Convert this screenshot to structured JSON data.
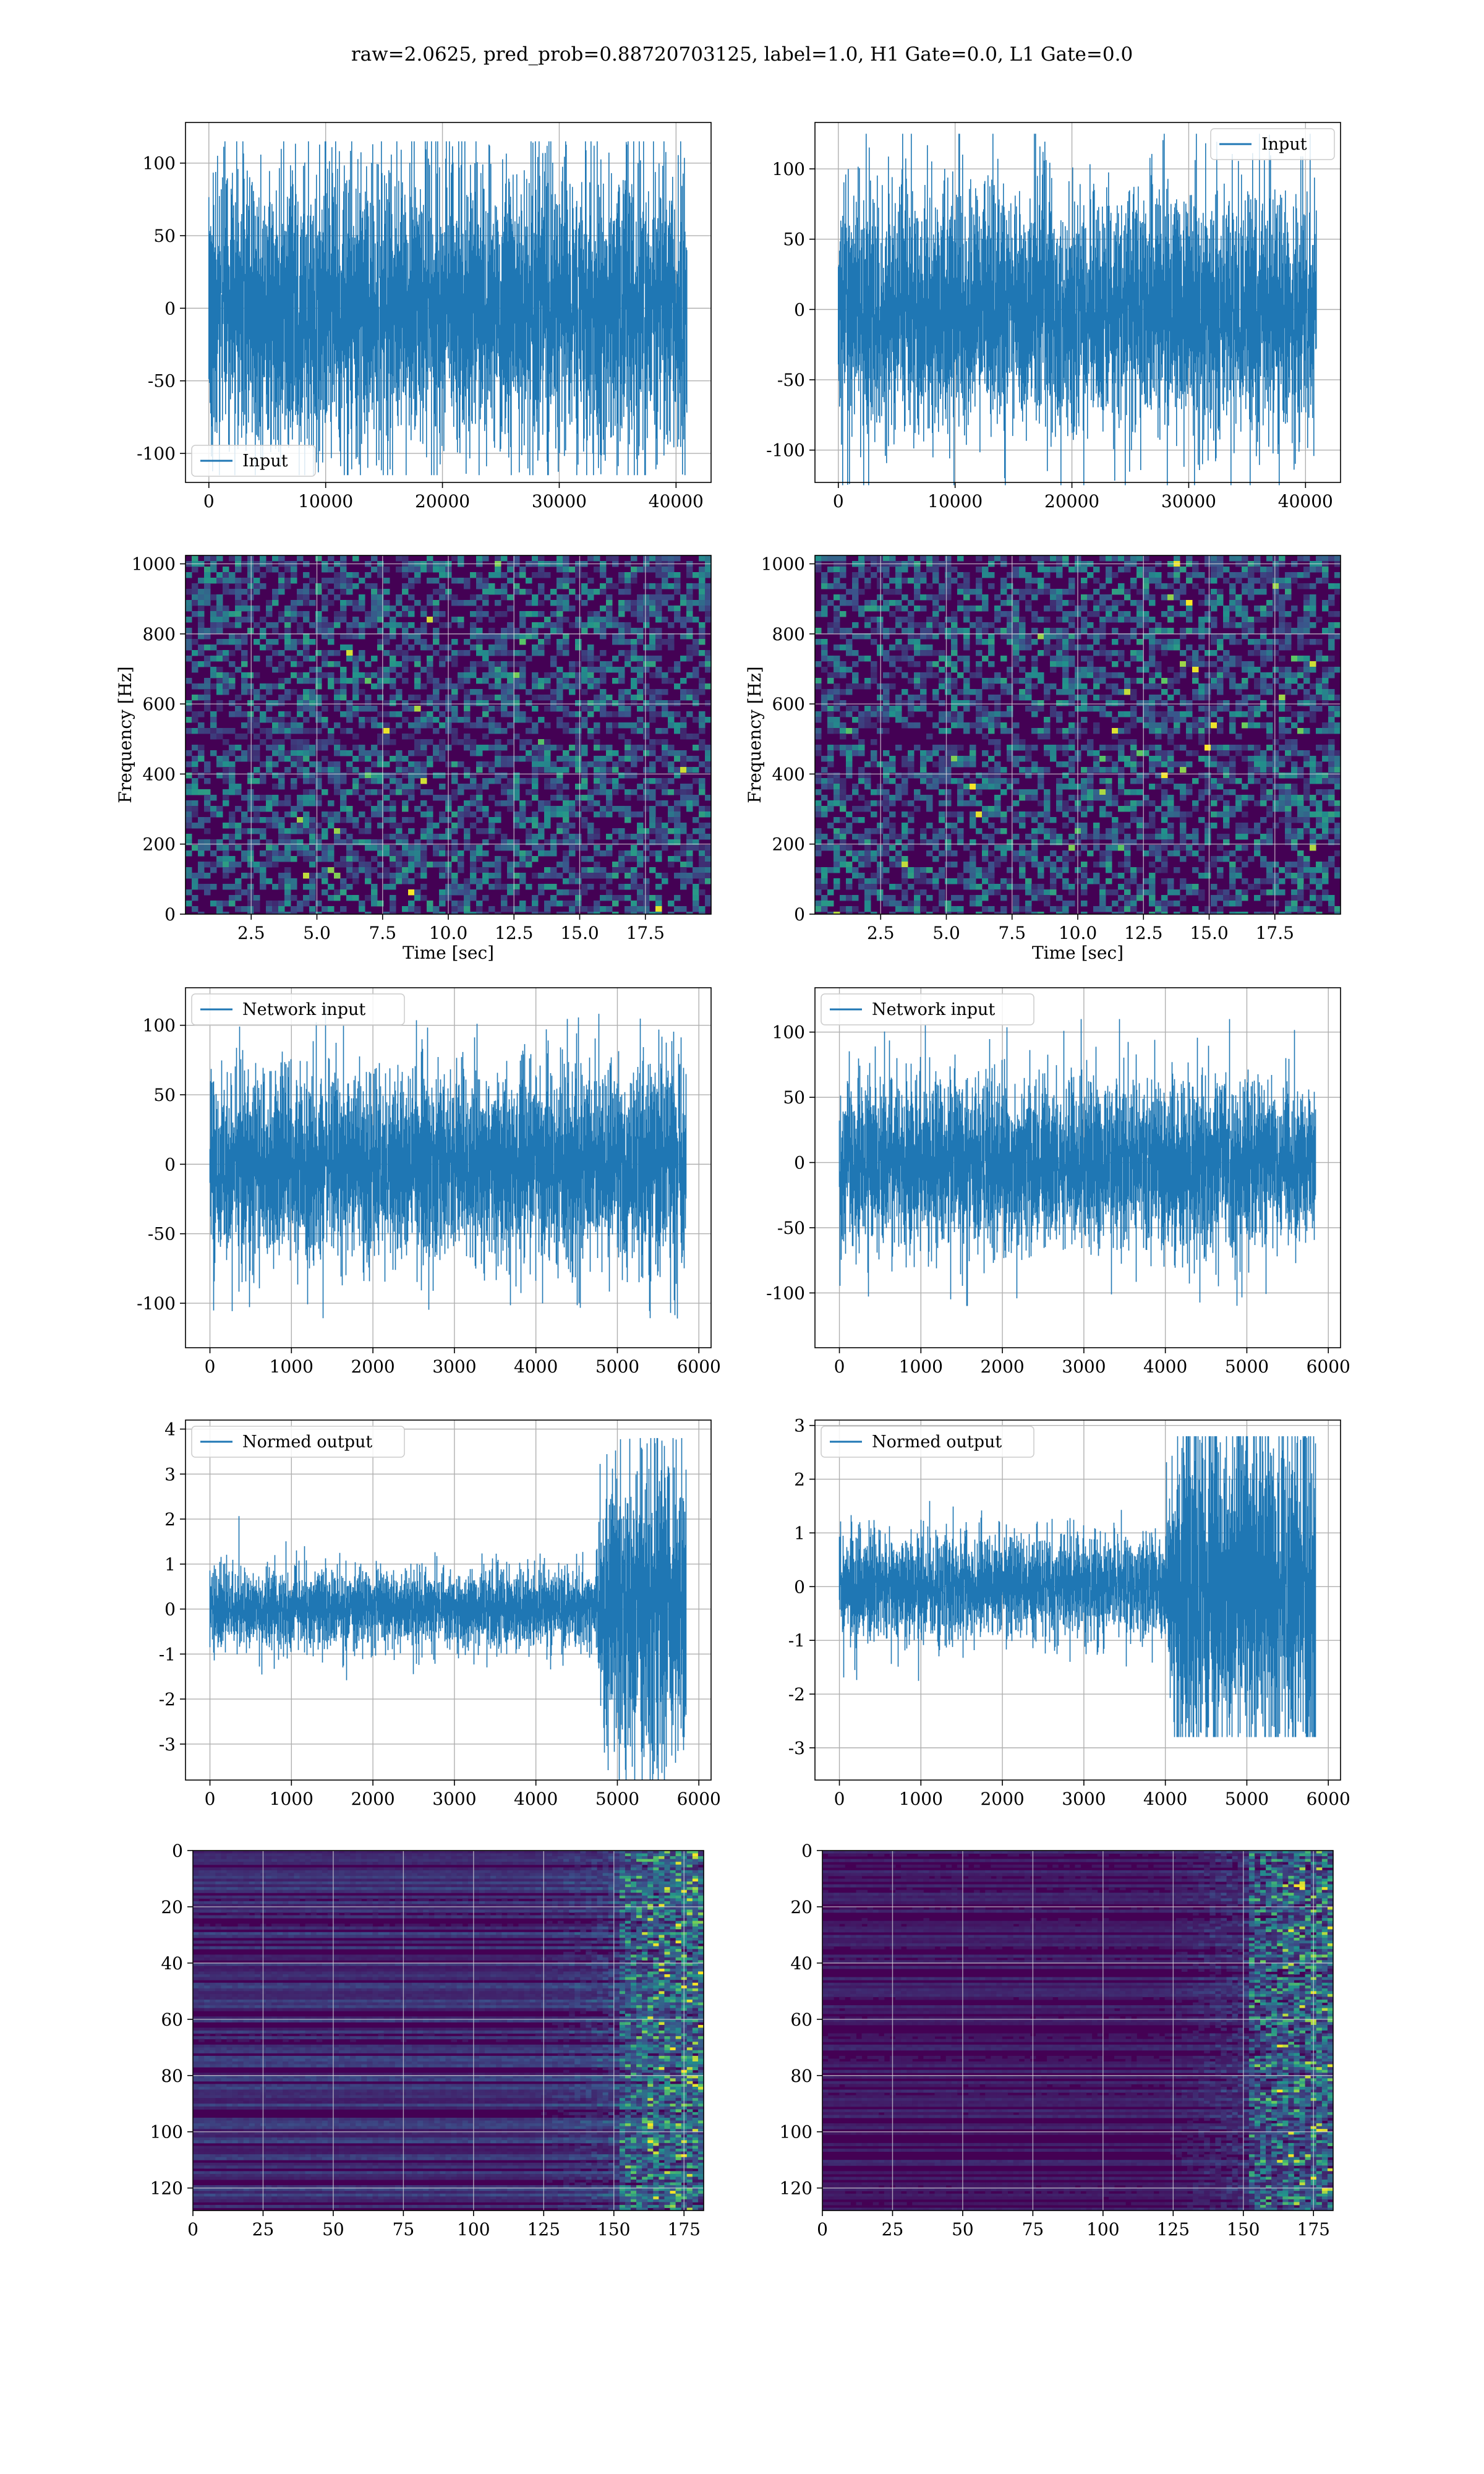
{
  "figure": {
    "title": "raw=2.0625, pred_prob=0.88720703125, label=1.0, H1 Gate=0.0, L1 Gate=0.0"
  },
  "colors": {
    "series": "#1f77b4",
    "grid": "#b0b0b0",
    "viridis_low": "#440154",
    "viridis_mid": "#21918c",
    "viridis_high": "#fde725"
  },
  "chart_data": [
    {
      "type": "line",
      "id": "row1-left",
      "series": [
        {
          "name": "Input",
          "amplitude": 45,
          "peak": 115,
          "n_points": 40960
        }
      ],
      "xlim": [
        -2000,
        43000
      ],
      "ylim": [
        -120,
        128
      ],
      "xticks": [
        0,
        10000,
        20000,
        30000,
        40000
      ],
      "yticks": [
        100,
        50,
        0,
        -50,
        -100
      ],
      "legend": "lower-left",
      "grid": true,
      "xlabel": "",
      "ylabel": ""
    },
    {
      "type": "line",
      "id": "row1-right",
      "series": [
        {
          "name": "Input",
          "amplitude": 40,
          "peak": 125,
          "n_points": 40960
        }
      ],
      "xlim": [
        -2000,
        43000
      ],
      "ylim": [
        -123,
        133
      ],
      "xticks": [
        0,
        10000,
        20000,
        30000,
        40000
      ],
      "yticks": [
        100,
        50,
        0,
        -50,
        -100
      ],
      "legend": "upper-right",
      "grid": true,
      "xlabel": "",
      "ylabel": ""
    },
    {
      "type": "heatmap",
      "id": "row2-left",
      "xlim": [
        0,
        20
      ],
      "ylim": [
        0,
        1024
      ],
      "xticks": [
        "2.5",
        "5.0",
        "7.5",
        "10.0",
        "12.5",
        "15.0",
        "17.5"
      ],
      "yticks": [
        0,
        200,
        400,
        600,
        800,
        1000
      ],
      "xlabel": "Time [sec]",
      "ylabel": "Frequency [Hz]",
      "grid": true,
      "colormap": "viridis"
    },
    {
      "type": "heatmap",
      "id": "row2-right",
      "xlim": [
        0,
        20
      ],
      "ylim": [
        0,
        1024
      ],
      "xticks": [
        "2.5",
        "5.0",
        "7.5",
        "10.0",
        "12.5",
        "15.0",
        "17.5"
      ],
      "yticks": [
        0,
        200,
        400,
        600,
        800,
        1000
      ],
      "xlabel": "Time [sec]",
      "ylabel": "Frequency [Hz]",
      "grid": true,
      "colormap": "viridis"
    },
    {
      "type": "line",
      "id": "row3-left",
      "series": [
        {
          "name": "Network input",
          "amplitude": 32,
          "peak": 115,
          "n_points": 5850
        }
      ],
      "xlim": [
        -300,
        6150
      ],
      "ylim": [
        -132,
        127
      ],
      "xticks": [
        0,
        1000,
        2000,
        3000,
        4000,
        5000,
        6000
      ],
      "yticks": [
        100,
        50,
        0,
        -50,
        -100
      ],
      "legend": "upper-left",
      "grid": true,
      "xlabel": "",
      "ylabel": ""
    },
    {
      "type": "line",
      "id": "row3-right",
      "series": [
        {
          "name": "Network input",
          "amplitude": 30,
          "peak": 110,
          "n_points": 5850
        }
      ],
      "xlim": [
        -300,
        6150
      ],
      "ylim": [
        -142,
        134
      ],
      "xticks": [
        0,
        1000,
        2000,
        3000,
        4000,
        5000,
        6000
      ],
      "yticks": [
        100,
        50,
        0,
        -50,
        -100
      ],
      "legend": "upper-left",
      "grid": true,
      "xlabel": "",
      "ylabel": ""
    },
    {
      "type": "line",
      "id": "row4-left",
      "series": [
        {
          "name": "Normed output",
          "amplitude": 0.4,
          "burst_start": 4720,
          "burst_amplitude": 1.2,
          "peak": 3.8,
          "n_points": 5850
        }
      ],
      "xlim": [
        -300,
        6150
      ],
      "ylim": [
        -3.8,
        4.2
      ],
      "xticks": [
        0,
        1000,
        2000,
        3000,
        4000,
        5000,
        6000
      ],
      "yticks": [
        4,
        3,
        2,
        1,
        0,
        -1,
        -2,
        -3
      ],
      "legend": "upper-left",
      "grid": true,
      "xlabel": "",
      "ylabel": ""
    },
    {
      "type": "line",
      "id": "row4-right",
      "series": [
        {
          "name": "Normed output",
          "amplitude": 0.45,
          "burst_start": 4000,
          "burst_amplitude": 1.1,
          "peak": 2.8,
          "n_points": 5850
        }
      ],
      "xlim": [
        -300,
        6150
      ],
      "ylim": [
        -3.6,
        3.1
      ],
      "xticks": [
        0,
        1000,
        2000,
        3000,
        4000,
        5000,
        6000
      ],
      "yticks": [
        3,
        2,
        1,
        0,
        -1,
        -2,
        -3
      ],
      "legend": "upper-left",
      "grid": true,
      "xlabel": "",
      "ylabel": ""
    },
    {
      "type": "heatmap",
      "id": "row5-left",
      "xlim": [
        0,
        182
      ],
      "ylim": [
        128,
        0
      ],
      "xticks": [
        0,
        25,
        50,
        75,
        100,
        125,
        150,
        175
      ],
      "yticks": [
        0,
        20,
        40,
        60,
        80,
        100,
        120
      ],
      "xlabel": "",
      "ylabel": "",
      "grid": true,
      "colormap": "viridis"
    },
    {
      "type": "heatmap",
      "id": "row5-right",
      "xlim": [
        0,
        182
      ],
      "ylim": [
        128,
        0
      ],
      "xticks": [
        0,
        25,
        50,
        75,
        100,
        125,
        150,
        175
      ],
      "yticks": [
        0,
        20,
        40,
        60,
        80,
        100,
        120
      ],
      "xlabel": "",
      "ylabel": "",
      "grid": true,
      "colormap": "viridis"
    }
  ]
}
